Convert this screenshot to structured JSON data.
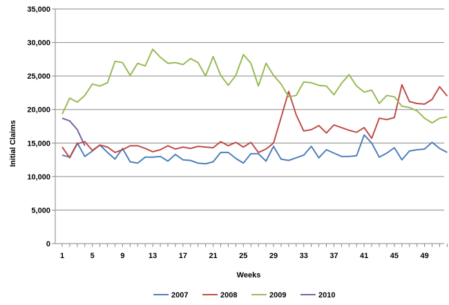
{
  "chart_data": {
    "type": "line",
    "title": "",
    "xlabel": "Weeks",
    "ylabel": "Initial Claims",
    "xlim": [
      1,
      52
    ],
    "ylim": [
      0,
      35000
    ],
    "x_ticks": [
      1,
      5,
      9,
      13,
      17,
      21,
      25,
      29,
      33,
      37,
      41,
      45,
      49
    ],
    "y_ticks": [
      0,
      5000,
      10000,
      15000,
      20000,
      25000,
      30000,
      35000
    ],
    "y_tick_labels": [
      "0",
      "5,000",
      "10,000",
      "15,000",
      "20,000",
      "25,000",
      "30,000",
      "35,000"
    ],
    "grid": "horizontal",
    "legend": "bottom",
    "series": [
      {
        "name": "2007",
        "color": "#4a7ebb",
        "x": [
          1,
          2,
          3,
          4,
          5,
          6,
          7,
          8,
          9,
          10,
          11,
          12,
          13,
          14,
          15,
          16,
          17,
          18,
          19,
          20,
          21,
          22,
          23,
          24,
          25,
          26,
          27,
          28,
          29,
          30,
          31,
          32,
          33,
          34,
          35,
          36,
          37,
          38,
          39,
          40,
          41,
          42,
          43,
          44,
          45,
          46,
          47,
          48,
          49,
          50,
          51,
          52
        ],
        "values": [
          13200,
          12900,
          15000,
          13000,
          13800,
          14700,
          13600,
          12600,
          14200,
          12200,
          12000,
          12900,
          12900,
          13000,
          12300,
          13300,
          12500,
          12400,
          12000,
          11900,
          12200,
          13600,
          13600,
          12700,
          12000,
          13400,
          13400,
          12300,
          14500,
          12600,
          12400,
          12800,
          13200,
          14500,
          12800,
          14000,
          13500,
          13000,
          13000,
          13100,
          16200,
          15000,
          12900,
          13500,
          14300,
          12500,
          13800,
          14000,
          14100,
          15100,
          14200,
          13600
        ]
      },
      {
        "name": "2008",
        "color": "#be4b48",
        "x": [
          1,
          2,
          3,
          4,
          5,
          6,
          7,
          8,
          9,
          10,
          11,
          12,
          13,
          14,
          15,
          16,
          17,
          18,
          19,
          20,
          21,
          22,
          23,
          24,
          25,
          26,
          27,
          28,
          29,
          30,
          31,
          32,
          33,
          34,
          35,
          36,
          37,
          38,
          39,
          40,
          41,
          42,
          43,
          44,
          45,
          46,
          47,
          48,
          49,
          50,
          51,
          52
        ],
        "values": [
          14400,
          12800,
          14900,
          15200,
          13900,
          14700,
          14400,
          13600,
          14000,
          14600,
          14600,
          14200,
          13700,
          14000,
          14600,
          14100,
          14400,
          14200,
          14500,
          14400,
          14300,
          15200,
          14600,
          15100,
          14400,
          15100,
          13600,
          14100,
          15000,
          18800,
          22700,
          19200,
          16800,
          17000,
          17600,
          16500,
          17700,
          17300,
          16900,
          16600,
          17300,
          15700,
          18700,
          18500,
          18800,
          23700,
          21200,
          20900,
          20800,
          21500,
          23400,
          22000
        ]
      },
      {
        "name": "2009",
        "color": "#98b954",
        "x": [
          1,
          2,
          3,
          4,
          5,
          6,
          7,
          8,
          9,
          10,
          11,
          12,
          13,
          14,
          15,
          16,
          17,
          18,
          19,
          20,
          21,
          22,
          23,
          24,
          25,
          26,
          27,
          28,
          29,
          30,
          31,
          32,
          33,
          34,
          35,
          36,
          37,
          38,
          39,
          40,
          41,
          42,
          43,
          44,
          45,
          46,
          47,
          48,
          49,
          50,
          51,
          52
        ],
        "values": [
          19300,
          21700,
          21100,
          22100,
          23800,
          23500,
          24000,
          27200,
          27000,
          25100,
          26900,
          26500,
          29000,
          27800,
          26900,
          27000,
          26700,
          27600,
          27000,
          25000,
          27900,
          25100,
          23600,
          25100,
          28200,
          26900,
          23500,
          26900,
          25100,
          23800,
          21900,
          22100,
          24100,
          24000,
          23600,
          23500,
          22200,
          23900,
          25200,
          23500,
          22600,
          22900,
          20900,
          22100,
          21900,
          20500,
          20300,
          19800,
          18700,
          18000,
          18700,
          18900
        ]
      },
      {
        "name": "2010",
        "color": "#7d5fa0",
        "x": [
          1,
          2,
          3,
          4
        ],
        "values": [
          18700,
          18300,
          17000,
          14600
        ]
      }
    ]
  }
}
